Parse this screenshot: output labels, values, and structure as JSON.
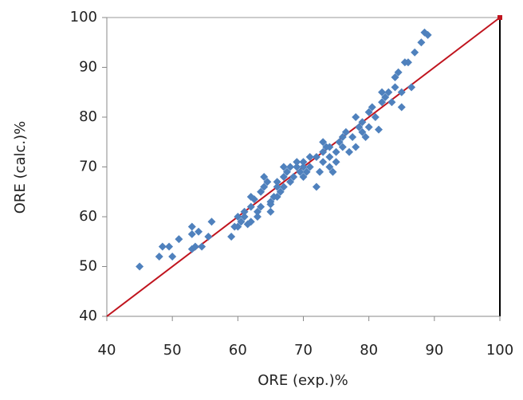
{
  "chart_data": {
    "type": "scatter",
    "xlabel": "ORE (exp.)%",
    "ylabel": "ORE (calc.)%",
    "xlim": [
      40,
      100
    ],
    "ylim": [
      40,
      100
    ],
    "xticks": [
      40,
      50,
      60,
      70,
      80,
      90,
      100
    ],
    "yticks": [
      40,
      50,
      60,
      70,
      80,
      90,
      100
    ],
    "grid": false,
    "series": [
      {
        "color": "#4f81bd",
        "x": [
          45,
          48,
          48.5,
          49.5,
          50,
          51,
          53,
          53,
          53.5,
          53,
          54,
          54.5,
          55.5,
          56,
          59,
          59.5,
          60,
          60,
          60.5,
          61,
          61,
          61.5,
          62,
          62,
          62.5,
          63,
          63,
          63.5,
          63.5,
          64,
          64,
          64.5,
          65,
          65,
          65,
          65.5,
          66,
          66,
          66.5,
          67,
          67,
          67.5,
          68,
          68.5,
          69,
          69,
          69.5,
          70,
          70,
          70.5,
          71,
          72,
          72,
          72.5,
          73,
          73,
          73.5,
          74,
          74,
          74.5,
          75,
          75,
          75.5,
          76,
          76.5,
          77,
          77.5,
          78,
          78,
          78.5,
          79,
          79,
          79.5,
          80,
          80,
          80.5,
          81,
          81.5,
          82,
          82,
          82.5,
          83,
          83.5,
          84,
          84,
          84.5,
          85,
          85,
          85.5,
          86,
          86.5,
          87,
          88,
          88.5,
          89,
          66,
          62,
          67,
          73,
          76,
          71,
          68,
          70,
          74
        ],
        "values": [
          50,
          52,
          54,
          54,
          52,
          55.5,
          58,
          56.5,
          54,
          53.5,
          57,
          54,
          56,
          59,
          56,
          58,
          60,
          58,
          59,
          61,
          60,
          58.5,
          59,
          62,
          63.5,
          61,
          60,
          62,
          65,
          66,
          68,
          67,
          63,
          61,
          62.5,
          64,
          67,
          66,
          65,
          70,
          66,
          69,
          67,
          68,
          70,
          71,
          69,
          71,
          68,
          69,
          70,
          72,
          66,
          69,
          71,
          73,
          74,
          72,
          70,
          69,
          73,
          71,
          75,
          74,
          77,
          73,
          76,
          80,
          74,
          78,
          79,
          77,
          76,
          78,
          81,
          82,
          80,
          77.5,
          85,
          83,
          84,
          85,
          83,
          88,
          86,
          89,
          82,
          85,
          91,
          91,
          86,
          93,
          95,
          97,
          96.5,
          64,
          64,
          68,
          75,
          76,
          72,
          70,
          70,
          74
        ]
      }
    ],
    "line": {
      "color": "#c0141e",
      "x": [
        40,
        100
      ],
      "values": [
        40,
        100
      ]
    }
  }
}
